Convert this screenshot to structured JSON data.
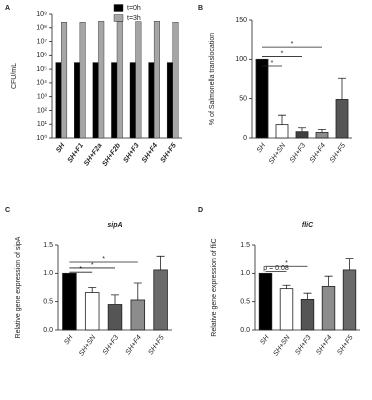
{
  "chart_data": [
    {
      "type": "bar",
      "panel": "A",
      "ylabel": "CFU/mL",
      "log_scale": true,
      "legend": "top",
      "categories": [
        "SH",
        "SH+F1",
        "SH+F2a",
        "SH+F2b",
        "SH+F3",
        "SH+F4",
        "SH+F5"
      ],
      "series": [
        {
          "name": "t=0h",
          "color": "#000000",
          "values": [
            300000,
            300000,
            300000,
            300000,
            300000,
            300000,
            300000
          ]
        },
        {
          "name": "t=3h",
          "color": "#a6a6a6",
          "values": [
            250000000,
            250000000,
            300000000,
            280000000,
            280000000,
            300000000,
            250000000
          ]
        }
      ],
      "ylim": [
        1,
        1000000000
      ],
      "yticks": [
        {
          "value": 1,
          "label": "10⁰"
        },
        {
          "value": 10,
          "label": "10¹"
        },
        {
          "value": 100,
          "label": "10²"
        },
        {
          "value": 1000,
          "label": "10³"
        },
        {
          "value": 10000,
          "label": "10⁴"
        },
        {
          "value": 100000,
          "label": "10⁵"
        },
        {
          "value": 1000000,
          "label": "10⁶"
        },
        {
          "value": 10000000,
          "label": "10⁷"
        },
        {
          "value": 100000000,
          "label": "10⁸"
        },
        {
          "value": 1000000000,
          "label": "10⁹"
        }
      ]
    },
    {
      "type": "bar",
      "panel": "B",
      "ylabel": "% of Salmonella translocation",
      "categories": [
        "SH",
        "SH+SN",
        "SH+F3",
        "SH+F4",
        "SH+F5"
      ],
      "values": [
        100,
        17,
        8,
        7,
        49
      ],
      "errors": [
        0,
        12,
        5,
        4,
        27
      ],
      "colors": [
        "#000000",
        "#ffffff",
        "#404040",
        "#8c8c8c",
        "#555555"
      ],
      "ylim": [
        0,
        150
      ],
      "yticks": [
        0,
        50,
        100,
        150
      ],
      "annotations": [
        "*",
        "*",
        "*"
      ]
    },
    {
      "type": "bar",
      "panel": "C",
      "title": "sipA",
      "ylabel": "Relative gene expression of sipA",
      "categories": [
        "SH",
        "SH+SN",
        "SH+F3",
        "SH+F4",
        "SH+F5"
      ],
      "values": [
        1.0,
        0.66,
        0.45,
        0.53,
        1.06
      ],
      "errors": [
        0,
        0.09,
        0.17,
        0.3,
        0.24
      ],
      "colors": [
        "#000000",
        "#ffffff",
        "#555555",
        "#8c8c8c",
        "#6a6a6a"
      ],
      "ylim": [
        0,
        1.5
      ],
      "yticks": [
        {
          "value": 0,
          "label": "0.0"
        },
        {
          "value": 0.5,
          "label": "0.5"
        },
        {
          "value": 1,
          "label": "1.0"
        },
        {
          "value": 1.5,
          "label": "1.5"
        }
      ],
      "annotations": [
        "*",
        "*",
        "*"
      ]
    },
    {
      "type": "bar",
      "panel": "D",
      "title": "fliC",
      "ylabel": "Relative gene expression of fliC",
      "categories": [
        "SH",
        "SH+SN",
        "SH+F3",
        "SH+F4",
        "SH+F5"
      ],
      "values": [
        1.0,
        0.73,
        0.54,
        0.77,
        1.06
      ],
      "errors": [
        0,
        0.06,
        0.11,
        0.18,
        0.2
      ],
      "colors": [
        "#000000",
        "#ffffff",
        "#555555",
        "#8c8c8c",
        "#6a6a6a"
      ],
      "ylim": [
        0,
        1.5
      ],
      "yticks": [
        {
          "value": 0,
          "label": "0.0"
        },
        {
          "value": 0.5,
          "label": "0.5"
        },
        {
          "value": 1,
          "label": "1.0"
        },
        {
          "value": 1.5,
          "label": "1.5"
        }
      ],
      "annotations": [
        "p = 0.08",
        "*"
      ]
    }
  ]
}
